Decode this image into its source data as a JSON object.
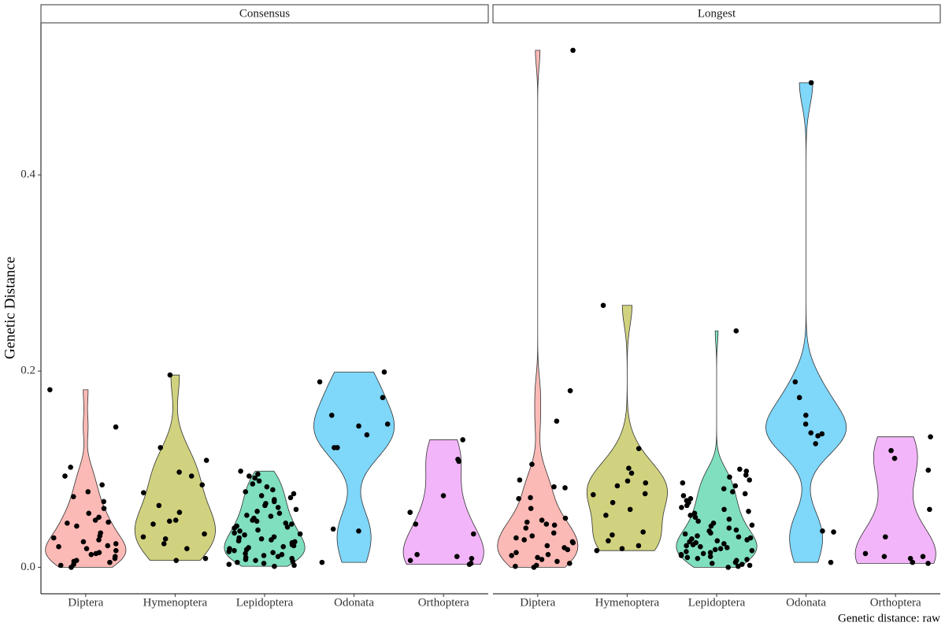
{
  "chart_data": {
    "type": "violin",
    "y_label": "Genetic Distance",
    "caption": "Genetic distance: raw",
    "ylim": [
      -0.027,
      0.555
    ],
    "yticks": [
      {
        "value": 0,
        "label": "0.0"
      },
      {
        "value": 0.2,
        "label": "0.2"
      },
      {
        "value": 0.4,
        "label": "0.4"
      }
    ],
    "categories": [
      "Diptera",
      "Hymenoptera",
      "Lepidoptera",
      "Odonata",
      "Orthoptera"
    ],
    "colors": [
      "#F8766D",
      "#A3A500",
      "#00BF7D",
      "#00B0F6",
      "#E76BF3"
    ],
    "fill_opacity": 0.5,
    "point_color": "#000000",
    "facets": [
      {
        "title": "Consensus",
        "series": [
          {
            "name": "Diptera",
            "values": [
              0.181,
              0.143,
              0.102,
              0.093,
              0.084,
              0.077,
              0.072,
              0.067,
              0.06,
              0.055,
              0.051,
              0.048,
              0.046,
              0.045,
              0.042,
              0.035,
              0.032,
              0.03,
              0.028,
              0.026,
              0.024,
              0.022,
              0.021,
              0.019,
              0.017,
              0.015,
              0.014,
              0.013,
              0.011,
              0.009,
              0.007,
              0.006,
              0.005,
              0.003,
              0.002,
              0.0
            ]
          },
          {
            "name": "Hymenoptera",
            "values": [
              0.196,
              0.122,
              0.109,
              0.097,
              0.093,
              0.084,
              0.076,
              0.063,
              0.056,
              0.048,
              0.047,
              0.044,
              0.034,
              0.031,
              0.029,
              0.024,
              0.019,
              0.009,
              0.007
            ]
          },
          {
            "name": "Lepidoptera",
            "values": [
              0.098,
              0.095,
              0.093,
              0.091,
              0.088,
              0.085,
              0.082,
              0.079,
              0.077,
              0.075,
              0.073,
              0.071,
              0.069,
              0.067,
              0.065,
              0.063,
              0.061,
              0.059,
              0.057,
              0.055,
              0.053,
              0.052,
              0.05,
              0.048,
              0.047,
              0.045,
              0.044,
              0.042,
              0.041,
              0.04,
              0.038,
              0.037,
              0.035,
              0.034,
              0.033,
              0.031,
              0.03,
              0.029,
              0.028,
              0.027,
              0.026,
              0.025,
              0.024,
              0.023,
              0.022,
              0.021,
              0.02,
              0.019,
              0.018,
              0.017,
              0.016,
              0.015,
              0.014,
              0.013,
              0.012,
              0.011,
              0.01,
              0.009,
              0.008,
              0.007,
              0.006,
              0.005,
              0.004,
              0.003,
              0.002,
              0.001
            ]
          },
          {
            "name": "Odonata",
            "values": [
              0.199,
              0.189,
              0.173,
              0.155,
              0.146,
              0.144,
              0.135,
              0.122,
              0.122,
              0.039,
              0.037,
              0.005
            ]
          },
          {
            "name": "Orthoptera",
            "values": [
              0.13,
              0.11,
              0.108,
              0.073,
              0.056,
              0.044,
              0.034,
              0.013,
              0.011,
              0.009,
              0.007,
              0.004,
              0.003
            ]
          }
        ]
      },
      {
        "title": "Longest",
        "series": [
          {
            "name": "Diptera",
            "values": [
              0.527,
              0.18,
              0.149,
              0.105,
              0.089,
              0.082,
              0.081,
              0.071,
              0.07,
              0.06,
              0.05,
              0.048,
              0.046,
              0.044,
              0.043,
              0.04,
              0.035,
              0.032,
              0.03,
              0.028,
              0.026,
              0.025,
              0.022,
              0.02,
              0.018,
              0.015,
              0.013,
              0.012,
              0.01,
              0.008,
              0.006,
              0.004,
              0.002,
              0.001,
              0.0
            ]
          },
          {
            "name": "Hymenoptera",
            "values": [
              0.267,
              0.121,
              0.101,
              0.096,
              0.088,
              0.086,
              0.083,
              0.075,
              0.074,
              0.066,
              0.059,
              0.053,
              0.036,
              0.033,
              0.027,
              0.022,
              0.019,
              0.017
            ]
          },
          {
            "name": "Lepidoptera",
            "values": [
              0.241,
              0.1,
              0.098,
              0.094,
              0.092,
              0.089,
              0.086,
              0.083,
              0.08,
              0.077,
              0.075,
              0.073,
              0.07,
              0.068,
              0.066,
              0.063,
              0.061,
              0.059,
              0.057,
              0.055,
              0.053,
              0.051,
              0.049,
              0.047,
              0.045,
              0.043,
              0.042,
              0.04,
              0.038,
              0.037,
              0.035,
              0.034,
              0.032,
              0.031,
              0.03,
              0.029,
              0.028,
              0.027,
              0.026,
              0.025,
              0.024,
              0.023,
              0.022,
              0.021,
              0.02,
              0.019,
              0.018,
              0.017,
              0.016,
              0.015,
              0.014,
              0.013,
              0.012,
              0.011,
              0.01,
              0.009,
              0.008,
              0.007,
              0.005,
              0.004,
              0.003,
              0.002,
              0.001,
              0.0
            ]
          },
          {
            "name": "Odonata",
            "values": [
              0.494,
              0.189,
              0.173,
              0.155,
              0.146,
              0.137,
              0.136,
              0.134,
              0.126,
              0.037,
              0.036,
              0.005
            ]
          },
          {
            "name": "Orthoptera",
            "values": [
              0.133,
              0.119,
              0.111,
              0.099,
              0.059,
              0.031,
              0.014,
              0.011,
              0.011,
              0.009,
              0.005,
              0.004
            ]
          }
        ]
      }
    ]
  }
}
